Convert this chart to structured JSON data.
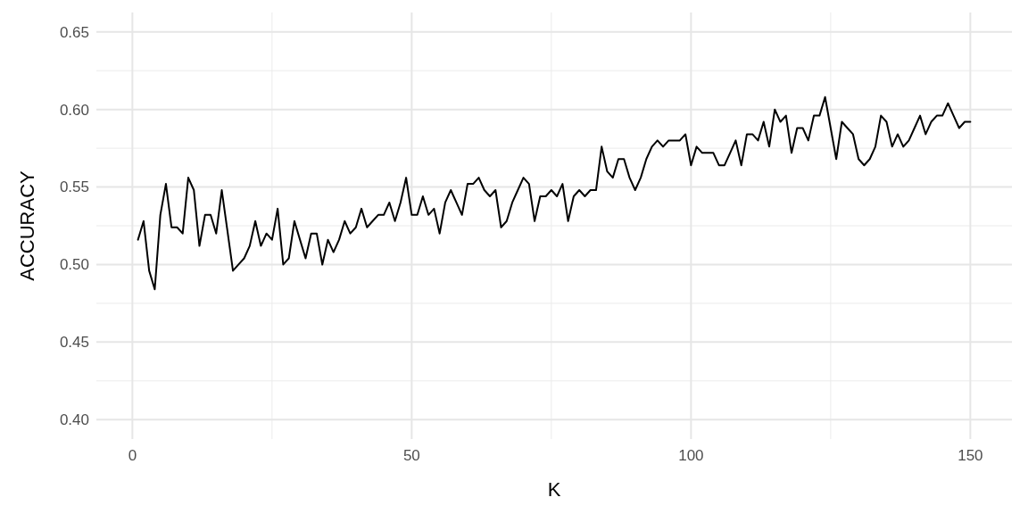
{
  "chart_data": {
    "type": "line",
    "xlabel": "K",
    "ylabel": "ACCURACY",
    "x": [
      1,
      2,
      3,
      4,
      5,
      6,
      7,
      8,
      9,
      10,
      11,
      12,
      13,
      14,
      15,
      16,
      17,
      18,
      19,
      20,
      21,
      22,
      23,
      24,
      25,
      26,
      27,
      28,
      29,
      30,
      31,
      32,
      33,
      34,
      35,
      36,
      37,
      38,
      39,
      40,
      41,
      42,
      43,
      44,
      45,
      46,
      47,
      48,
      49,
      50,
      51,
      52,
      53,
      54,
      55,
      56,
      57,
      58,
      59,
      60,
      61,
      62,
      63,
      64,
      65,
      66,
      67,
      68,
      69,
      70,
      71,
      72,
      73,
      74,
      75,
      76,
      77,
      78,
      79,
      80,
      81,
      82,
      83,
      84,
      85,
      86,
      87,
      88,
      89,
      90,
      91,
      92,
      93,
      94,
      95,
      96,
      97,
      98,
      99,
      100,
      101,
      102,
      103,
      104,
      105,
      106,
      107,
      108,
      109,
      110,
      111,
      112,
      113,
      114,
      115,
      116,
      117,
      118,
      119,
      120,
      121,
      122,
      123,
      124,
      125,
      126,
      127,
      128,
      129,
      130,
      131,
      132,
      133,
      134,
      135,
      136,
      137,
      138,
      139,
      140,
      141,
      142,
      143,
      144,
      145,
      146,
      147,
      148,
      149,
      150
    ],
    "series": [
      {
        "color": "#000000",
        "values": [
          0.516,
          0.528,
          0.496,
          0.484,
          0.532,
          0.552,
          0.524,
          0.524,
          0.52,
          0.556,
          0.548,
          0.512,
          0.532,
          0.532,
          0.52,
          0.548,
          0.522,
          0.496,
          0.5,
          0.504,
          0.512,
          0.528,
          0.512,
          0.52,
          0.516,
          0.536,
          0.5,
          0.504,
          0.528,
          0.516,
          0.504,
          0.52,
          0.52,
          0.5,
          0.516,
          0.508,
          0.516,
          0.528,
          0.52,
          0.524,
          0.536,
          0.524,
          0.528,
          0.532,
          0.532,
          0.54,
          0.528,
          0.54,
          0.556,
          0.532,
          0.532,
          0.544,
          0.532,
          0.536,
          0.52,
          0.54,
          0.548,
          0.54,
          0.532,
          0.552,
          0.552,
          0.556,
          0.548,
          0.544,
          0.548,
          0.524,
          0.528,
          0.54,
          0.548,
          0.556,
          0.552,
          0.528,
          0.544,
          0.544,
          0.548,
          0.544,
          0.552,
          0.528,
          0.544,
          0.548,
          0.544,
          0.548,
          0.548,
          0.576,
          0.56,
          0.556,
          0.568,
          0.568,
          0.556,
          0.548,
          0.556,
          0.568,
          0.576,
          0.58,
          0.576,
          0.58,
          0.58,
          0.58,
          0.584,
          0.564,
          0.576,
          0.572,
          0.572,
          0.572,
          0.564,
          0.564,
          0.572,
          0.58,
          0.564,
          0.584,
          0.584,
          0.58,
          0.592,
          0.576,
          0.6,
          0.592,
          0.596,
          0.572,
          0.588,
          0.588,
          0.58,
          0.596,
          0.596,
          0.608,
          0.588,
          0.568,
          0.592,
          0.588,
          0.584,
          0.568,
          0.564,
          0.568,
          0.576,
          0.596,
          0.592,
          0.576,
          0.584,
          0.576,
          0.58,
          0.588,
          0.596,
          0.584,
          0.592,
          0.596,
          0.596,
          0.604,
          0.596,
          0.588,
          0.592,
          0.592
        ]
      }
    ],
    "xlim": [
      -6.45,
      157.45
    ],
    "xticks": [
      0,
      50,
      100,
      150
    ],
    "ylim": [
      0.3875,
      0.6625
    ],
    "yticks": [
      {
        "value": 0.4,
        "label": "0.40"
      },
      0.45,
      {
        "value": 0.5,
        "label": "0.50"
      },
      0.55,
      {
        "value": 0.6,
        "label": "0.60"
      },
      0.65
    ],
    "grid": true,
    "line_style": "solid"
  }
}
